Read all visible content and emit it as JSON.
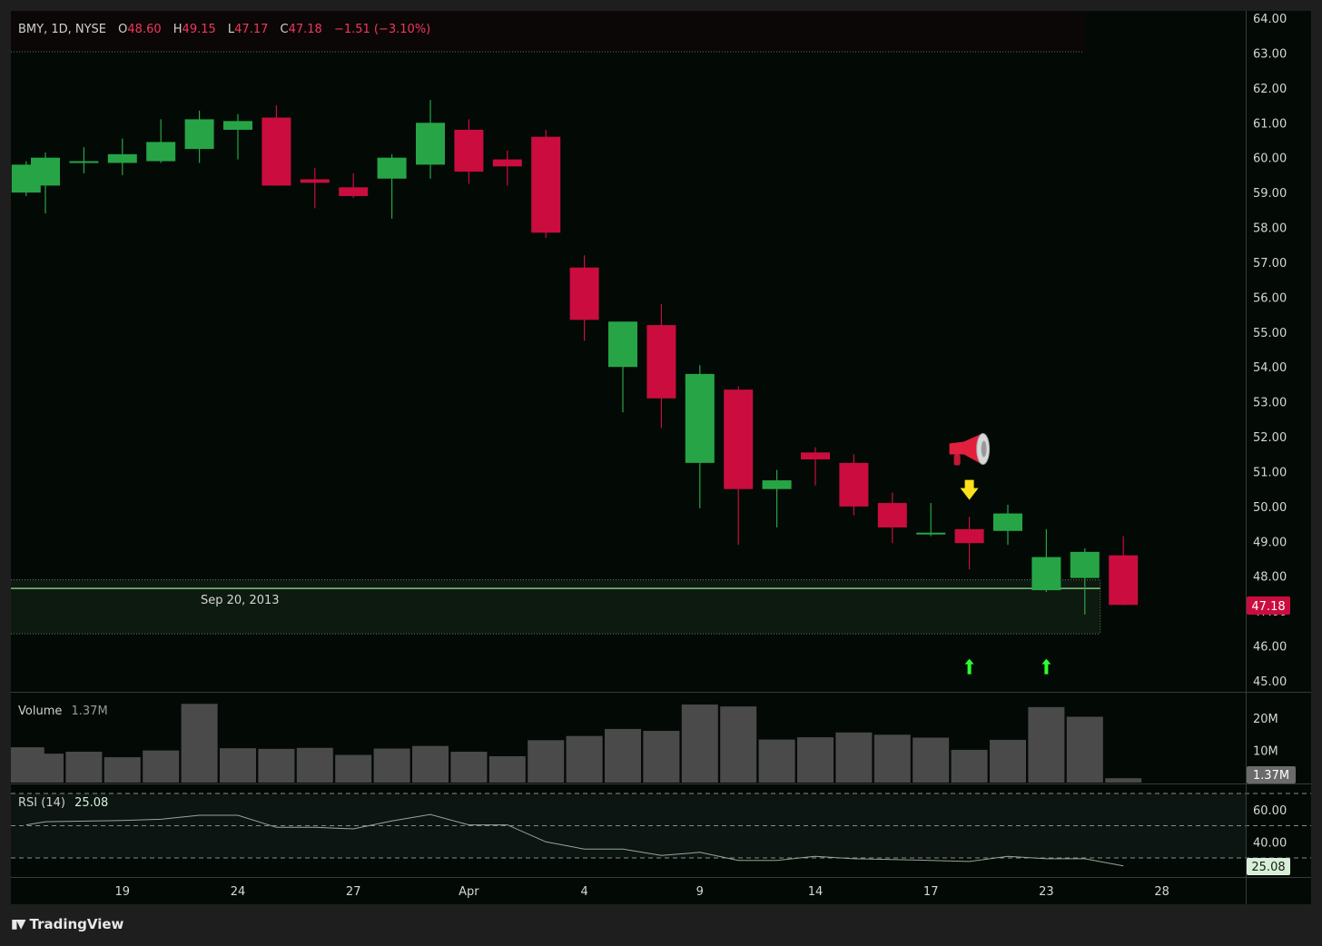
{
  "legend": {
    "symbol": "BMY, 1D, NYSE",
    "o_label": "O",
    "o_value": "48.60",
    "h_label": "H",
    "h_value": "49.15",
    "l_label": "L",
    "l_value": "47.17",
    "c_label": "C",
    "c_value": "47.18",
    "change": "−1.51 (−3.10%)"
  },
  "volume_pane": {
    "label": "Volume",
    "value": "1.37M",
    "badge": "1.37M"
  },
  "rsi_pane": {
    "label": "RSI (14)",
    "value": "25.08",
    "badge": "25.08"
  },
  "last_price_badge": "47.18",
  "zone_label": "Sep 20, 2013",
  "footer": {
    "brand": "TradingView"
  },
  "colors": {
    "background": "#030a05",
    "up": "#27a546",
    "down": "#ca0d3e",
    "volume": "#4a4a4a",
    "rsi_line": "#9aa59a",
    "zone_line": "#7fc27f",
    "signal_up": "#2dff2d",
    "signal_down": "#ffe01a"
  },
  "chart_data": {
    "type": "candlestick",
    "price_axis": {
      "ylim": [
        44.7,
        64.3
      ],
      "ticks": [
        "64.00",
        "63.00",
        "62.00",
        "61.00",
        "60.00",
        "59.00",
        "58.00",
        "57.00",
        "56.00",
        "55.00",
        "54.00",
        "53.00",
        "52.00",
        "51.00",
        "50.00",
        "49.00",
        "48.00",
        "47.00",
        "46.00",
        "45.00"
      ]
    },
    "x_axis": {
      "ticks": [
        {
          "label": "19",
          "day": 2
        },
        {
          "label": "24",
          "day": 5
        },
        {
          "label": "27",
          "day": 8
        },
        {
          "label": "Apr",
          "day": 11
        },
        {
          "label": "4",
          "day": 14
        },
        {
          "label": "9",
          "day": 17
        },
        {
          "label": "14",
          "day": 20
        },
        {
          "label": "17",
          "day": 23
        },
        {
          "label": "23",
          "day": 26
        },
        {
          "label": "28",
          "day": 29
        }
      ]
    },
    "candles": [
      {
        "day": -0.5,
        "o": 59.0,
        "h": 59.9,
        "l": 58.9,
        "c": 59.8
      },
      {
        "day": 0,
        "o": 59.2,
        "h": 60.15,
        "l": 58.4,
        "c": 60.0
      },
      {
        "day": 1,
        "o": 59.9,
        "h": 60.3,
        "l": 59.55,
        "c": 59.9
      },
      {
        "day": 2,
        "o": 59.85,
        "h": 60.55,
        "l": 59.5,
        "c": 60.1
      },
      {
        "day": 3,
        "o": 59.9,
        "h": 61.1,
        "l": 59.85,
        "c": 60.45
      },
      {
        "day": 4,
        "o": 60.25,
        "h": 61.35,
        "l": 59.85,
        "c": 61.1
      },
      {
        "day": 5,
        "o": 60.8,
        "h": 61.25,
        "l": 59.95,
        "c": 61.05
      },
      {
        "day": 6,
        "o": 61.15,
        "h": 61.5,
        "l": 59.2,
        "c": 59.2
      },
      {
        "day": 7,
        "o": 59.38,
        "h": 59.7,
        "l": 58.55,
        "c": 59.28
      },
      {
        "day": 8,
        "o": 59.15,
        "h": 59.55,
        "l": 58.85,
        "c": 58.9
      },
      {
        "day": 9,
        "o": 59.4,
        "h": 60.1,
        "l": 58.25,
        "c": 60.0
      },
      {
        "day": 10,
        "o": 59.8,
        "h": 61.65,
        "l": 59.4,
        "c": 61.0
      },
      {
        "day": 11,
        "o": 60.8,
        "h": 61.1,
        "l": 59.25,
        "c": 59.6
      },
      {
        "day": 12,
        "o": 59.95,
        "h": 60.2,
        "l": 59.2,
        "c": 59.75
      },
      {
        "day": 13,
        "o": 60.6,
        "h": 60.8,
        "l": 57.7,
        "c": 57.85
      },
      {
        "day": 14,
        "o": 56.85,
        "h": 57.2,
        "l": 54.75,
        "c": 55.35
      },
      {
        "day": 15,
        "o": 54.0,
        "h": 55.3,
        "l": 52.7,
        "c": 55.3
      },
      {
        "day": 16,
        "o": 55.2,
        "h": 55.8,
        "l": 52.25,
        "c": 53.1
      },
      {
        "day": 17,
        "o": 51.25,
        "h": 54.05,
        "l": 49.95,
        "c": 53.8
      },
      {
        "day": 18,
        "o": 53.35,
        "h": 53.45,
        "l": 48.9,
        "c": 50.5
      },
      {
        "day": 19,
        "o": 50.5,
        "h": 51.05,
        "l": 49.4,
        "c": 50.75
      },
      {
        "day": 20,
        "o": 51.55,
        "h": 51.7,
        "l": 50.6,
        "c": 51.35
      },
      {
        "day": 21,
        "o": 51.25,
        "h": 51.5,
        "l": 49.75,
        "c": 50.0
      },
      {
        "day": 22,
        "o": 50.1,
        "h": 50.4,
        "l": 48.95,
        "c": 49.4
      },
      {
        "day": 23,
        "o": 49.2,
        "h": 50.1,
        "l": 49.15,
        "c": 49.25
      },
      {
        "day": 24,
        "o": 49.35,
        "h": 49.7,
        "l": 48.2,
        "c": 48.95
      },
      {
        "day": 25,
        "o": 49.3,
        "h": 50.05,
        "l": 48.9,
        "c": 49.8
      },
      {
        "day": 26,
        "o": 47.6,
        "h": 49.35,
        "l": 47.55,
        "c": 48.55
      },
      {
        "day": 27,
        "o": 47.95,
        "h": 48.8,
        "l": 46.9,
        "c": 48.7
      },
      {
        "day": 28,
        "o": 48.6,
        "h": 49.15,
        "l": 47.17,
        "c": 47.18
      }
    ],
    "support_zone": {
      "top": 47.9,
      "line": 47.65,
      "bottom": 46.35,
      "end_day": 27
    },
    "signals": [
      {
        "type": "sell-arrow",
        "day": 24,
        "price": 50.45
      },
      {
        "type": "megaphone",
        "day": 24,
        "price": 51.65
      },
      {
        "type": "buy-arrow",
        "day": 24,
        "price": 45.4
      },
      {
        "type": "buy-arrow",
        "day": 26,
        "price": 45.4
      }
    ],
    "volume": {
      "ticks": [
        "20M",
        "10M"
      ],
      "ylim": [
        0,
        26
      ],
      "bars": [
        {
          "day": -0.5,
          "v": 11.0
        },
        {
          "day": 0,
          "v": 9.0
        },
        {
          "day": 1,
          "v": 9.6
        },
        {
          "day": 2,
          "v": 7.9
        },
        {
          "day": 3,
          "v": 10.0
        },
        {
          "day": 4,
          "v": 24.5
        },
        {
          "day": 5,
          "v": 10.7
        },
        {
          "day": 6,
          "v": 10.5
        },
        {
          "day": 7,
          "v": 10.8
        },
        {
          "day": 8,
          "v": 8.6
        },
        {
          "day": 9,
          "v": 10.6
        },
        {
          "day": 10,
          "v": 11.4
        },
        {
          "day": 11,
          "v": 9.6
        },
        {
          "day": 12,
          "v": 8.2
        },
        {
          "day": 13,
          "v": 13.2
        },
        {
          "day": 14,
          "v": 14.5
        },
        {
          "day": 15,
          "v": 16.7
        },
        {
          "day": 16,
          "v": 16.1
        },
        {
          "day": 17,
          "v": 24.3
        },
        {
          "day": 18,
          "v": 23.7
        },
        {
          "day": 19,
          "v": 13.4
        },
        {
          "day": 20,
          "v": 14.1
        },
        {
          "day": 21,
          "v": 15.6
        },
        {
          "day": 22,
          "v": 14.9
        },
        {
          "day": 23,
          "v": 14.0
        },
        {
          "day": 24,
          "v": 10.2
        },
        {
          "day": 25,
          "v": 13.3
        },
        {
          "day": 26,
          "v": 23.5
        },
        {
          "day": 27,
          "v": 20.5
        },
        {
          "day": 28,
          "v": 1.37
        }
      ]
    },
    "rsi": {
      "ticks": [
        "60.00",
        "40.00"
      ],
      "ylim": [
        14,
        69
      ],
      "bands": [
        70,
        50,
        30
      ],
      "points": [
        [
          -0.5,
          50.5
        ],
        [
          0,
          52.5
        ],
        [
          2,
          53.2
        ],
        [
          3,
          54.0
        ],
        [
          4,
          56.5
        ],
        [
          5,
          56.5
        ],
        [
          6,
          49.0
        ],
        [
          7,
          49.0
        ],
        [
          8,
          48.0
        ],
        [
          9,
          53.0
        ],
        [
          10,
          57.0
        ],
        [
          11,
          50.5
        ],
        [
          12,
          50.5
        ],
        [
          13,
          40.0
        ],
        [
          14,
          35.5
        ],
        [
          15,
          35.5
        ],
        [
          16,
          31.5
        ],
        [
          17,
          33.5
        ],
        [
          18,
          28.5
        ],
        [
          19,
          28.5
        ],
        [
          20,
          31.0
        ],
        [
          21,
          29.5
        ],
        [
          22,
          29.0
        ],
        [
          23,
          28.5
        ],
        [
          24,
          27.8
        ],
        [
          25,
          31.0
        ],
        [
          26,
          29.5
        ],
        [
          27,
          29.5
        ],
        [
          28,
          25.08
        ]
      ]
    }
  }
}
